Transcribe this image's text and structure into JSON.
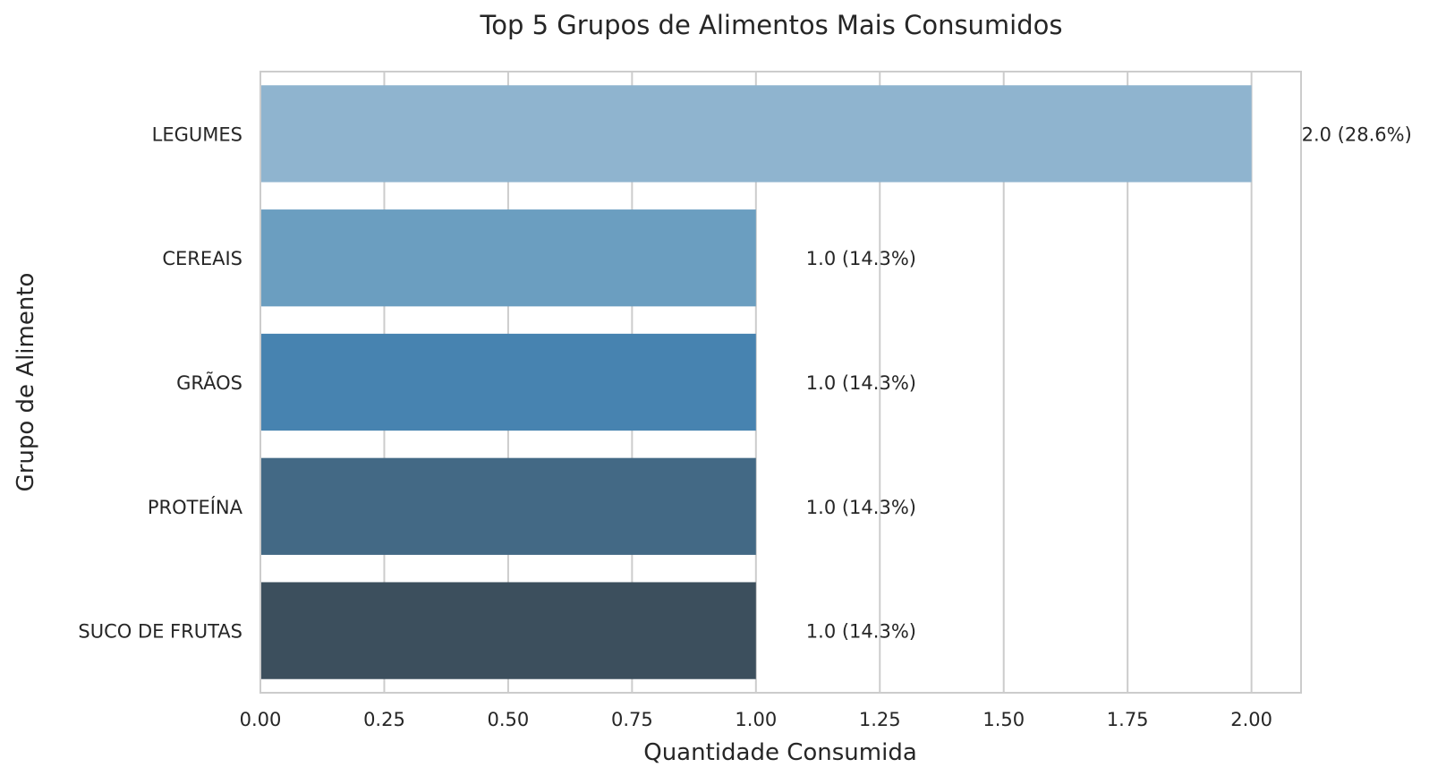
{
  "chart_data": {
    "type": "bar",
    "orientation": "horizontal",
    "title": "Top 5 Grupos de Alimentos Mais Consumidos",
    "xlabel": "Quantidade Consumida",
    "ylabel": "Grupo de Alimento",
    "categories": [
      "LEGUMES",
      "CEREAIS",
      "GRÃOS",
      "PROTEÍNA",
      "SUCO DE FRUTAS"
    ],
    "values": [
      2.0,
      1.0,
      1.0,
      1.0,
      1.0
    ],
    "value_labels": [
      "2.0 (28.6%)",
      "1.0 (14.3%)",
      "1.0 (14.3%)",
      "1.0 (14.3%)",
      "1.0 (14.3%)"
    ],
    "colors": [
      "#8fb4cf",
      "#6b9ec0",
      "#4783b0",
      "#436985",
      "#3c4f5d"
    ],
    "xlim": [
      0,
      2.1
    ],
    "xticks": [
      "0.00",
      "0.25",
      "0.50",
      "0.75",
      "1.00",
      "1.25",
      "1.50",
      "1.75",
      "2.00"
    ],
    "grid": true,
    "legend": "none"
  }
}
